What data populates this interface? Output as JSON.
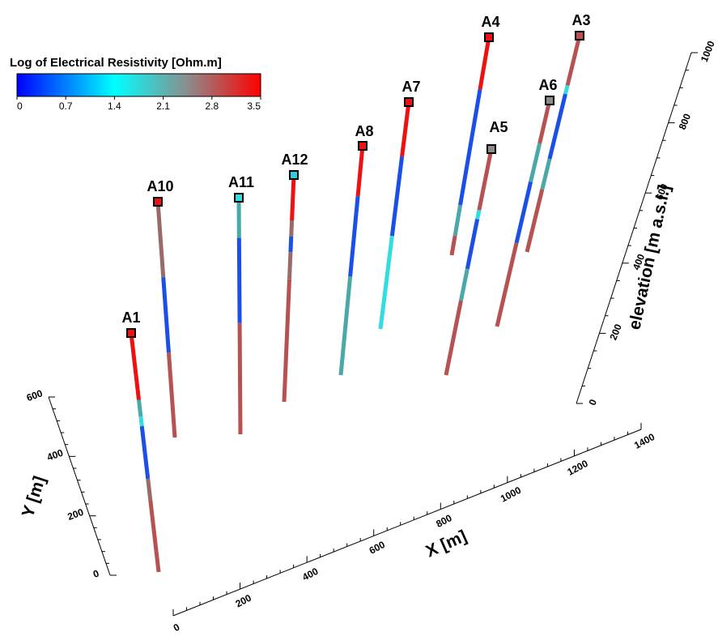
{
  "legend": {
    "title": "Log of Electrical Resistivity [Ohm.m]",
    "min": 0,
    "max": 3.5,
    "ticks": [
      "0",
      "0.7",
      "1.4",
      "2.1",
      "2.8",
      "3.5"
    ],
    "gradient_stops": [
      {
        "value": 0.0,
        "color": "#0000ff"
      },
      {
        "value": 1.4,
        "color": "#00ffff"
      },
      {
        "value": 2.45,
        "color": "#8c8c8c"
      },
      {
        "value": 3.5,
        "color": "#ff0000"
      }
    ]
  },
  "segment_colors": {
    "red": "#ee1111",
    "brown": "#b65252",
    "mauve": "#9a6a6a",
    "teal": "#4aa8a8",
    "cyan": "#33dddd",
    "blue": "#1c4fe6",
    "deepblue": "#1a2eea"
  },
  "axes": {
    "x": {
      "title": "X [m]",
      "ticks": [
        "0",
        "200",
        "400",
        "600",
        "800",
        "1000",
        "1200",
        "1400"
      ]
    },
    "y": {
      "title": "Y [m]",
      "ticks": [
        "0",
        "200",
        "400",
        "600"
      ]
    },
    "z": {
      "title": "elevation [m a.s.l.]",
      "ticks": [
        "0",
        "200",
        "400",
        "600",
        "800",
        "1000"
      ]
    }
  },
  "wells": [
    {
      "label": "A1",
      "head_color": "#ee1111",
      "segments": [
        [
          "red",
          0.0,
          0.28
        ],
        [
          "teal",
          0.28,
          0.35
        ],
        [
          "cyan",
          0.35,
          0.39
        ],
        [
          "blue",
          0.39,
          0.61
        ],
        [
          "mauve",
          0.61,
          0.7
        ],
        [
          "brown",
          0.7,
          1.0
        ]
      ]
    },
    {
      "label": "A10",
      "head_color": "#ee1111",
      "segments": [
        [
          "mauve",
          0.0,
          0.32
        ],
        [
          "blue",
          0.32,
          0.64
        ],
        [
          "brown",
          0.64,
          1.0
        ]
      ]
    },
    {
      "label": "A11",
      "head_color": "#33dddd",
      "segments": [
        [
          "teal",
          0.0,
          0.17
        ],
        [
          "blue",
          0.17,
          0.53
        ],
        [
          "brown",
          0.53,
          1.0
        ]
      ]
    },
    {
      "label": "A12",
      "head_color": "#33ccdd",
      "segments": [
        [
          "red",
          0.0,
          0.2
        ],
        [
          "mauve",
          0.2,
          0.27
        ],
        [
          "blue",
          0.27,
          0.34
        ],
        [
          "mauve",
          0.34,
          0.46
        ],
        [
          "brown",
          0.46,
          1.0
        ]
      ]
    },
    {
      "label": "A8",
      "head_color": "#ee1111",
      "segments": [
        [
          "red",
          0.0,
          0.22
        ],
        [
          "blue",
          0.22,
          0.57
        ],
        [
          "teal",
          0.57,
          1.0
        ]
      ]
    },
    {
      "label": "A7",
      "head_color": "#ee1111",
      "segments": [
        [
          "red",
          0.0,
          0.24
        ],
        [
          "blue",
          0.24,
          0.59
        ],
        [
          "cyan",
          0.59,
          1.0
        ]
      ]
    },
    {
      "label": "A4",
      "head_color": "#ee1111",
      "segments": [
        [
          "red",
          0.0,
          0.24
        ],
        [
          "blue",
          0.24,
          0.77
        ],
        [
          "teal",
          0.77,
          0.91
        ],
        [
          "brown",
          0.91,
          1.0
        ]
      ]
    },
    {
      "label": "A5",
      "head_color": "#8c8c8c",
      "segments": [
        [
          "brown",
          0.0,
          0.27
        ],
        [
          "cyan",
          0.27,
          0.31
        ],
        [
          "blue",
          0.31,
          0.53
        ],
        [
          "teal",
          0.53,
          0.67
        ],
        [
          "brown",
          0.67,
          1.0
        ]
      ]
    },
    {
      "label": "A6",
      "head_color": "#8c8c8c",
      "segments": [
        [
          "brown",
          0.0,
          0.19
        ],
        [
          "teal",
          0.19,
          0.36
        ],
        [
          "blue",
          0.36,
          0.63
        ],
        [
          "brown",
          0.63,
          1.0
        ]
      ]
    },
    {
      "label": "A3",
      "head_color": "#b65252",
      "segments": [
        [
          "brown",
          0.0,
          0.23
        ],
        [
          "cyan",
          0.23,
          0.27
        ],
        [
          "blue",
          0.27,
          0.57
        ],
        [
          "teal",
          0.57,
          0.71
        ],
        [
          "brown",
          0.71,
          1.0
        ]
      ]
    }
  ]
}
